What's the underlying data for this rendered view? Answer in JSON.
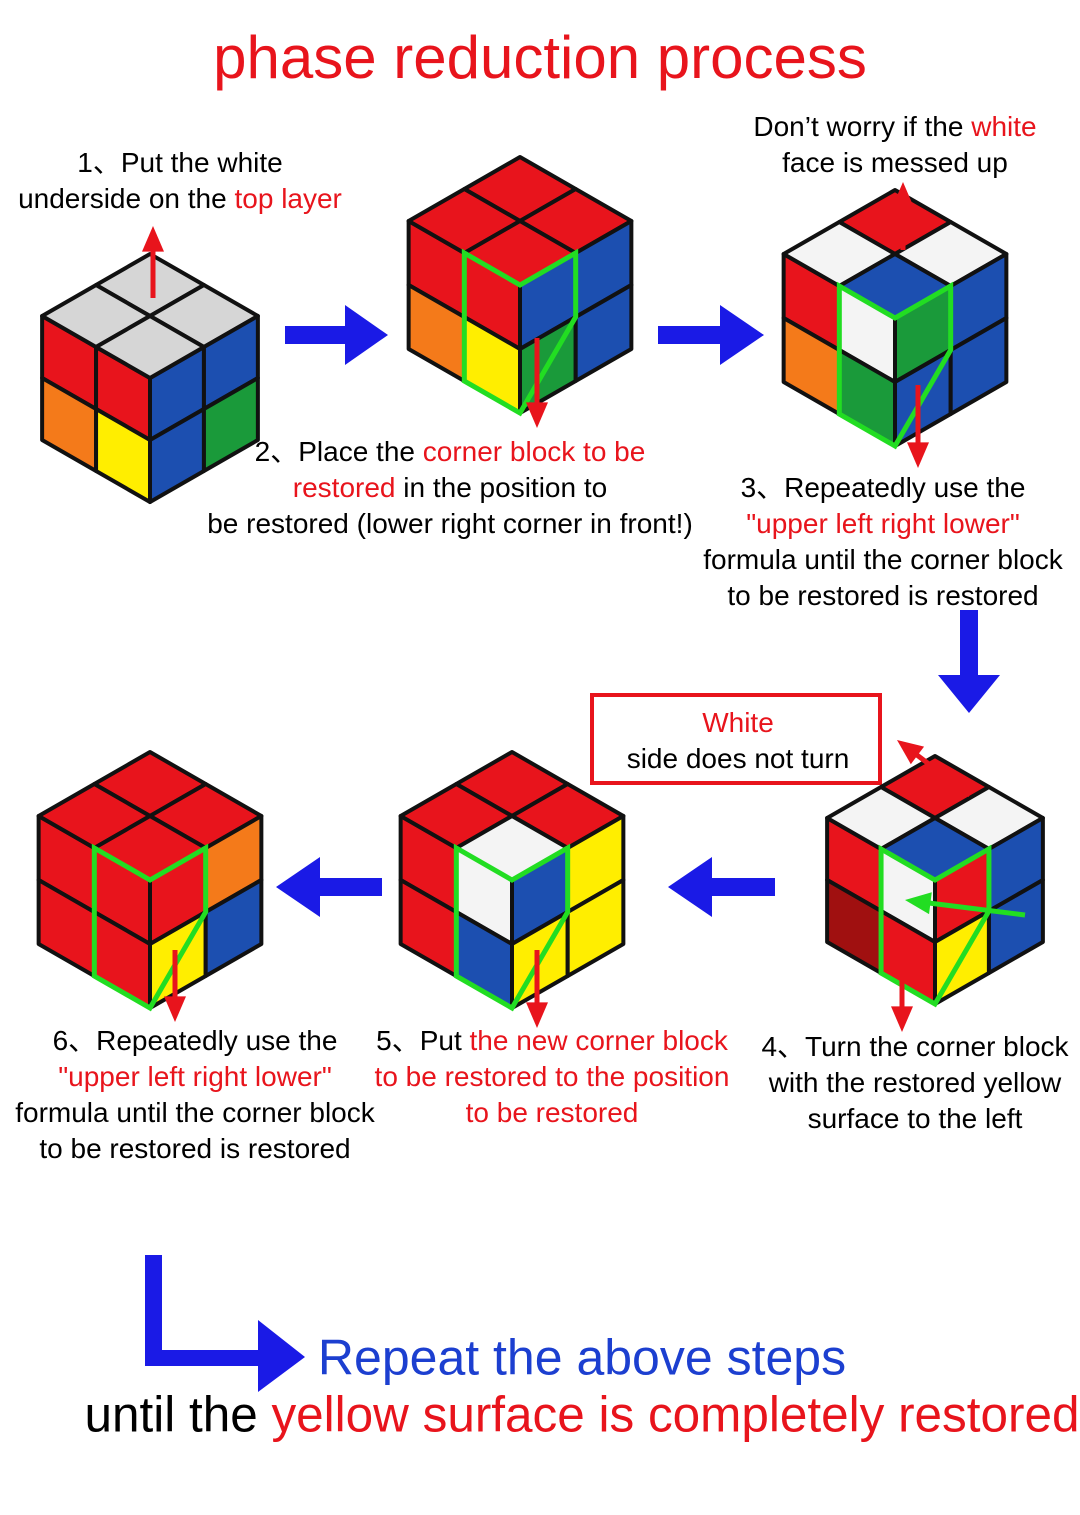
{
  "title": "phase reduction process",
  "notes": {
    "step1": {
      "lines": [
        [
          {
            "text": "1、Put the white",
            "color": "#000000"
          }
        ],
        [
          {
            "text": "underside on the ",
            "color": "#000000"
          },
          {
            "text": "top layer",
            "color": "#e8141c"
          }
        ]
      ]
    },
    "messed_up": {
      "lines": [
        [
          {
            "text": "Don’t worry if the ",
            "color": "#000000"
          },
          {
            "text": "white",
            "color": "#e8141c"
          }
        ],
        [
          {
            "text": "face is messed up",
            "color": "#000000"
          }
        ]
      ]
    },
    "step2": {
      "lines": [
        [
          {
            "text": "2、Place the ",
            "color": "#000000"
          },
          {
            "text": "corner block to be",
            "color": "#e8141c"
          }
        ],
        [
          {
            "text": "restored",
            "color": "#e8141c"
          },
          {
            "text": " in the position to",
            "color": "#000000"
          }
        ],
        [
          {
            "text": "be restored (lower right corner in front!)",
            "color": "#000000"
          }
        ]
      ]
    },
    "step3": {
      "lines": [
        [
          {
            "text": "3、Repeatedly use the",
            "color": "#000000"
          }
        ],
        [
          {
            "text": "\"upper left right lower\"",
            "color": "#e8141c"
          }
        ],
        [
          {
            "text": "formula until the corner block",
            "color": "#000000"
          }
        ],
        [
          {
            "text": "to be restored is restored",
            "color": "#000000"
          }
        ]
      ]
    },
    "white_side": {
      "lines": [
        [
          {
            "text": "White",
            "color": "#e8141c"
          }
        ],
        [
          {
            "text": "side does not turn",
            "color": "#000000"
          }
        ]
      ]
    },
    "step4": {
      "lines": [
        [
          {
            "text": "4、Turn the corner block",
            "color": "#000000"
          }
        ],
        [
          {
            "text": "with the restored yellow",
            "color": "#000000"
          }
        ],
        [
          {
            "text": "surface to the left",
            "color": "#000000"
          }
        ]
      ]
    },
    "step5": {
      "lines": [
        [
          {
            "text": "5、Put ",
            "color": "#000000"
          },
          {
            "text": "the new corner block",
            "color": "#e8141c"
          }
        ],
        [
          {
            "text": "to be restored to the position",
            "color": "#e8141c"
          }
        ],
        [
          {
            "text": "to be restored",
            "color": "#e8141c"
          }
        ]
      ]
    },
    "step6": {
      "lines": [
        [
          {
            "text": "6、Repeatedly use the",
            "color": "#000000"
          }
        ],
        [
          {
            "text": "\"upper left right lower\"",
            "color": "#e8141c"
          }
        ],
        [
          {
            "text": "formula until the corner block",
            "color": "#000000"
          }
        ],
        [
          {
            "text": "to be restored is restored",
            "color": "#000000"
          }
        ]
      ]
    },
    "footer": {
      "lines": [
        [
          {
            "text": "Repeat the above steps",
            "color": "#1c3fd0"
          }
        ],
        [
          {
            "text": "until the ",
            "color": "#000000"
          },
          {
            "text": "yellow surface is completely restored",
            "color": "#e8141c"
          }
        ]
      ]
    }
  }
}
